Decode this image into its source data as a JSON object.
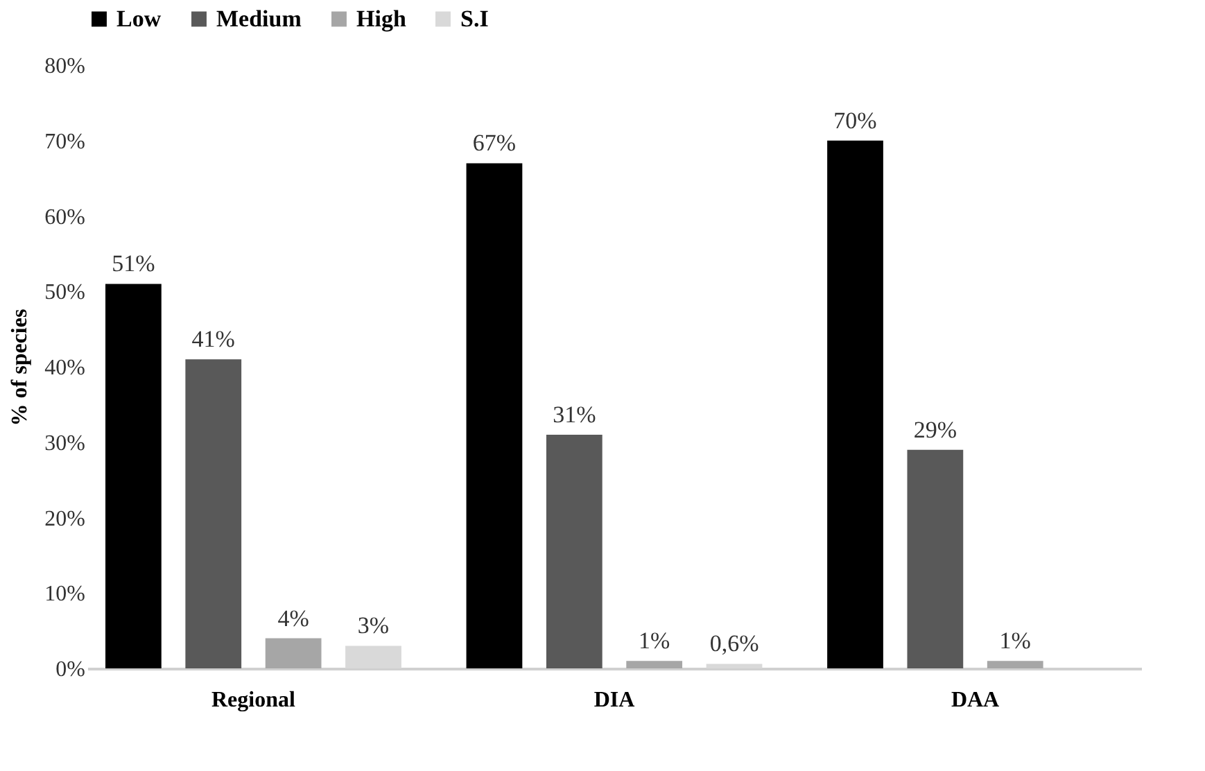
{
  "chart_data": {
    "type": "bar",
    "ylabel": "% of species",
    "categories": [
      "Regional",
      "DIA",
      "DAA"
    ],
    "series": [
      {
        "name": "Low",
        "color": "#000000",
        "values": [
          51,
          67,
          70
        ],
        "value_labels": [
          "51%",
          "67%",
          "70%"
        ]
      },
      {
        "name": "Medium",
        "color": "#595959",
        "values": [
          41,
          31,
          29
        ],
        "value_labels": [
          "41%",
          "31%",
          "29%"
        ]
      },
      {
        "name": "High",
        "color": "#a6a6a6",
        "values": [
          4,
          1,
          1
        ],
        "value_labels": [
          "4%",
          "1%",
          "1%"
        ]
      },
      {
        "name": "S.I",
        "color": "#d9d9d9",
        "values": [
          3,
          0.6,
          null
        ],
        "value_labels": [
          "3%",
          "0,6%",
          null
        ]
      }
    ],
    "ylim": [
      0,
      80
    ],
    "yticks": [
      {
        "value": 0,
        "label": "0%"
      },
      {
        "value": 10,
        "label": "10%"
      },
      {
        "value": 20,
        "label": "20%"
      },
      {
        "value": 30,
        "label": "30%"
      },
      {
        "value": 40,
        "label": "40%"
      },
      {
        "value": 50,
        "label": "50%"
      },
      {
        "value": 60,
        "label": "60%"
      },
      {
        "value": 70,
        "label": "70%"
      },
      {
        "value": 80,
        "label": "80%"
      }
    ],
    "grid": false,
    "legend": "top"
  }
}
